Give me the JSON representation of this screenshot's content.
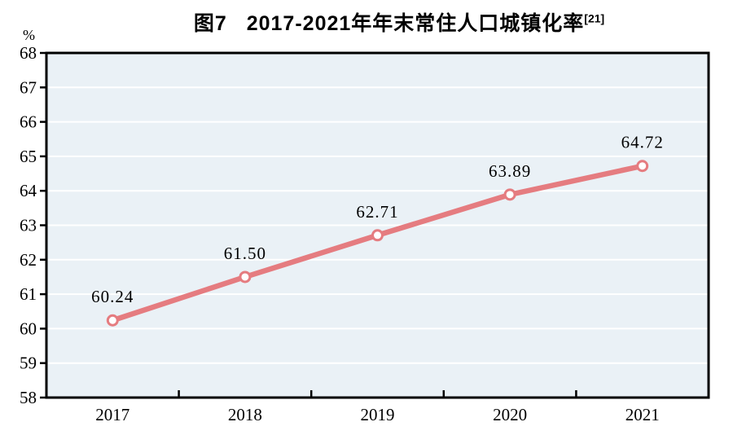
{
  "figure": {
    "title_prefix": "图7",
    "title_text": "2017-2021年年末常住人口城镇化率",
    "title_superscript": "[21]",
    "unit_label": "%"
  },
  "chart_data": {
    "type": "line",
    "title": "图7 2017-2021年年末常住人口城镇化率[21]",
    "categories": [
      "2017",
      "2018",
      "2019",
      "2020",
      "2021"
    ],
    "series": [
      {
        "name": "年末常住人口城镇化率",
        "values": [
          60.24,
          61.5,
          62.71,
          63.89,
          64.72
        ]
      }
    ],
    "data_labels": [
      "60.24",
      "61.50",
      "62.71",
      "63.89",
      "64.72"
    ],
    "xlabel": "",
    "ylabel": "%",
    "ylim": [
      58,
      68
    ],
    "ytick_step": 1,
    "ytick_labels": [
      "58",
      "59",
      "60",
      "61",
      "62",
      "63",
      "64",
      "65",
      "66",
      "67",
      "68"
    ],
    "grid": true,
    "legend_position": "none",
    "colors": {
      "line": "#e57c80",
      "marker_fill": "#ffffff",
      "plot_background": "#eaf1f6",
      "gridline": "#ffffff",
      "axis": "#000000",
      "text": "#000000"
    }
  }
}
